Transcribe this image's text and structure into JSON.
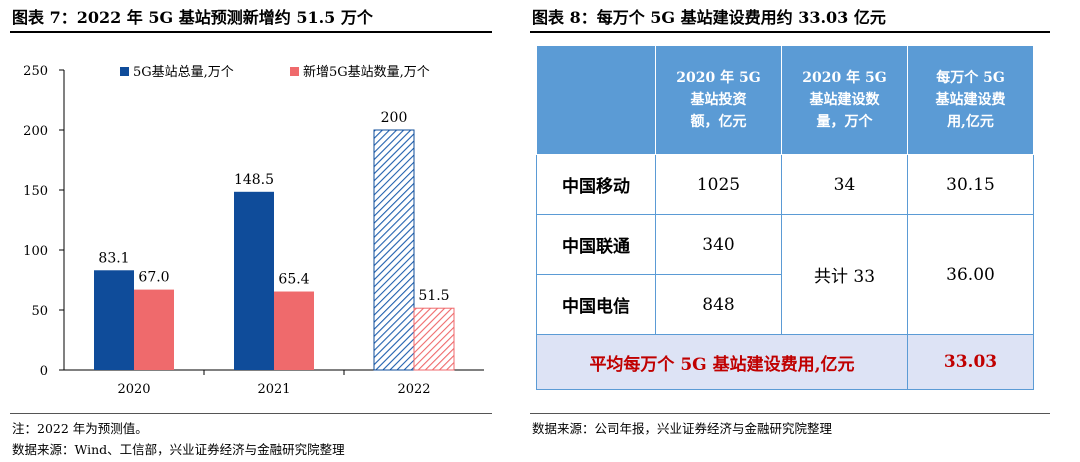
{
  "left": {
    "title": "图表 7：2022 年 5G 基站预测新增约 51.5 万个",
    "note": "注：2022 年为预测值。",
    "source": "数据来源：Wind、工信部，兴业证券经济与金融研究院整理"
  },
  "right": {
    "title": "图表 8：每万个 5G 基站建设费用约 33.03 亿元",
    "source": "数据来源：公司年报，兴业证券经济与金融研究院整理",
    "headers": [
      "",
      "2020 年 5G\n基站投资\n额，亿元",
      "2020 年 5G\n基站建设数\n量，万个",
      "每万个 5G\n基站建设费\n用,亿元"
    ],
    "rows": [
      {
        "name": "中国移动",
        "invest": "1025",
        "count": "34",
        "cost": "30.15"
      },
      {
        "name": "中国联通",
        "invest": "340"
      },
      {
        "name": "中国电信",
        "invest": "848"
      }
    ],
    "merged_count": "共计 33",
    "merged_cost": "36.00",
    "footer_label": "平均每万个 5G 基站建设费用,亿元",
    "footer_value": "33.03"
  },
  "chart_data": {
    "type": "bar",
    "categories": [
      "2020",
      "2021",
      "2022"
    ],
    "series": [
      {
        "name": "5G基站总量,万个",
        "values": [
          83.1,
          148.5,
          200
        ],
        "color": "#0f4c9a"
      },
      {
        "name": "新增5G基站数量,万个",
        "values": [
          67.0,
          65.4,
          51.5
        ],
        "color": "#ef6a6c"
      }
    ],
    "data_labels": [
      [
        "83.1",
        "148.5",
        "200"
      ],
      [
        "67.0",
        "65.4",
        "51.5"
      ]
    ],
    "forecast_category": "2022",
    "ylim": [
      0,
      250
    ],
    "yticks": [
      0,
      50,
      100,
      150,
      200,
      250
    ],
    "legend_position": "top",
    "grid": false
  }
}
